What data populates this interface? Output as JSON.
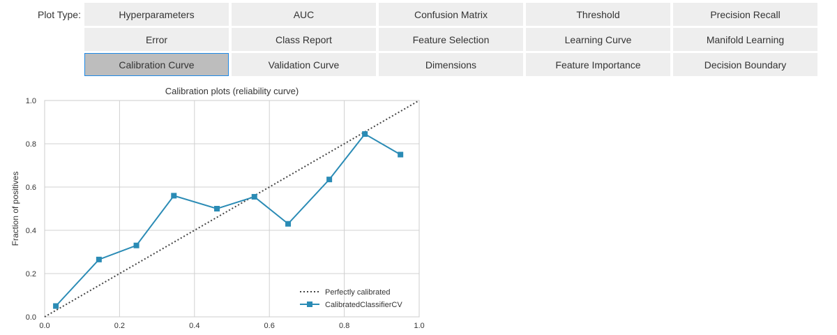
{
  "toolbar": {
    "label": "Plot Type:",
    "buttons": [
      {
        "label": "Hyperparameters",
        "selected": false
      },
      {
        "label": "AUC",
        "selected": false
      },
      {
        "label": "Confusion Matrix",
        "selected": false
      },
      {
        "label": "Threshold",
        "selected": false
      },
      {
        "label": "Precision Recall",
        "selected": false
      },
      {
        "label": "Error",
        "selected": false
      },
      {
        "label": "Class Report",
        "selected": false
      },
      {
        "label": "Feature Selection",
        "selected": false
      },
      {
        "label": "Learning Curve",
        "selected": false
      },
      {
        "label": "Manifold Learning",
        "selected": false
      },
      {
        "label": "Calibration Curve",
        "selected": true
      },
      {
        "label": "Validation Curve",
        "selected": false
      },
      {
        "label": "Dimensions",
        "selected": false
      },
      {
        "label": "Feature Importance",
        "selected": false
      },
      {
        "label": "Decision Boundary",
        "selected": false
      }
    ]
  },
  "colors": {
    "series": "#2a8bb5",
    "reference_line": "#444444",
    "button_bg": "#eeeeee",
    "button_selected_bg": "#bdbdbd",
    "button_selected_border": "#1e88e5"
  },
  "chart_data": {
    "type": "line",
    "title": "Calibration plots  (reliability curve)",
    "xlabel": "",
    "ylabel": "Fraction of positives",
    "xlim": [
      0.0,
      1.0
    ],
    "ylim": [
      0.0,
      1.0
    ],
    "xticks": [
      "0.0",
      "0.2",
      "0.4",
      "0.6",
      "0.8",
      "1.0"
    ],
    "yticks": [
      "0.0",
      "0.2",
      "0.4",
      "0.6",
      "0.8",
      "1.0"
    ],
    "grid": true,
    "legend_position": "lower-right",
    "series": [
      {
        "name": "Perfectly calibrated",
        "style": "dotted",
        "marker": "none",
        "x": [
          0.0,
          1.0
        ],
        "y": [
          0.0,
          1.0
        ]
      },
      {
        "name": "CalibratedClassifierCV",
        "style": "solid",
        "marker": "square",
        "x": [
          0.03,
          0.145,
          0.245,
          0.345,
          0.46,
          0.56,
          0.65,
          0.76,
          0.855,
          0.95
        ],
        "y": [
          0.05,
          0.265,
          0.33,
          0.56,
          0.5,
          0.555,
          0.43,
          0.635,
          0.845,
          0.75
        ]
      }
    ]
  }
}
